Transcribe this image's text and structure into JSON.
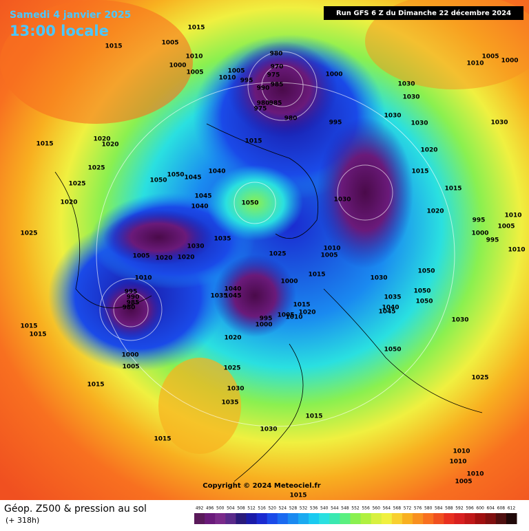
{
  "header": {
    "date": "Samedi 4 janvier 2025",
    "time": "13:00 locale",
    "run": "Run GFS 6 Z du Dimanche 22 décembre 2024"
  },
  "map": {
    "copyright": "Copyright © 2024 Meteociel.fr",
    "isobar_labels": [
      1015,
      1015,
      1005,
      1010,
      1000,
      1005,
      980,
      970,
      975,
      1005,
      1010,
      995,
      990,
      985,
      1000,
      980,
      985,
      975,
      980,
      995,
      1030,
      1030,
      1030,
      1030,
      1030,
      1005,
      1010,
      1000,
      1015,
      1020,
      1020,
      1015,
      1020,
      1025,
      1025,
      1020,
      1025,
      1050,
      1045,
      1040,
      1050,
      1045,
      1040,
      1050,
      1030,
      1015,
      1015,
      1020,
      995,
      1000,
      995,
      1010,
      1005,
      1010,
      1035,
      1030,
      1005,
      1020,
      1020,
      1025,
      1010,
      1005,
      1015,
      1030,
      1050,
      1010,
      1040,
      1035,
      1045,
      1000,
      995,
      990,
      985,
      980,
      1015,
      1020,
      1005,
      1010,
      995,
      1000,
      1035,
      1040,
      1045,
      1050,
      1050,
      1030,
      1015,
      1015,
      1020,
      1050,
      1000,
      1005,
      1025,
      1025,
      1015,
      1030,
      1035,
      1015,
      1030,
      1015,
      1010,
      1010,
      1010,
      1005,
      1015
    ]
  },
  "footer": {
    "title": "Géop. Z500 & pression au sol",
    "lead": "(+ 318h)",
    "scale": [
      492,
      496,
      500,
      504,
      508,
      512,
      516,
      520,
      524,
      528,
      532,
      536,
      540,
      544,
      548,
      552,
      556,
      560,
      564,
      568,
      572,
      576,
      580,
      584,
      588,
      592,
      596,
      600,
      604,
      608,
      612
    ],
    "scale_colors": [
      "#5a1a5a",
      "#6a1a7a",
      "#7a2a8a",
      "#5a2a8a",
      "#2a1a7a",
      "#1a1aa8",
      "#1a2ad0",
      "#1a4ae8",
      "#1a6af0",
      "#1a8af0",
      "#1aaaf0",
      "#1acaf0",
      "#2ae0e0",
      "#3ae8b0",
      "#5af080",
      "#8af050",
      "#b0f040",
      "#d8f040",
      "#f0f040",
      "#f8d030",
      "#f8b020",
      "#f89020",
      "#f87020",
      "#f05020",
      "#e83020",
      "#d82020",
      "#c01818",
      "#a01010",
      "#801010",
      "#501010",
      "#200808"
    ]
  }
}
